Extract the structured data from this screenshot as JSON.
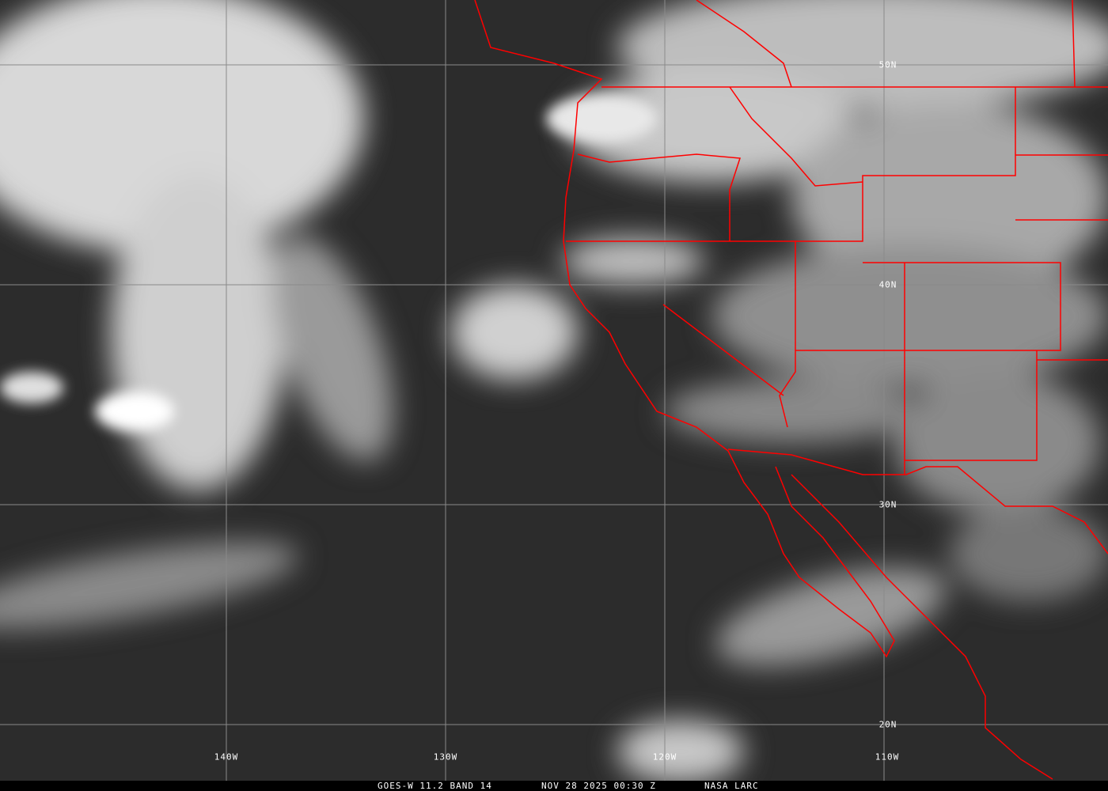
{
  "caption": {
    "satellite": "GOES-W 11.2 BAND 14",
    "datetime": "NOV 28 2025 00:30 Z",
    "source": "NASA LARC"
  },
  "grid": {
    "latitudes": [
      "50N",
      "40N",
      "30N",
      "20N"
    ],
    "longitudes": [
      "140W",
      "130W",
      "120W",
      "110W"
    ]
  },
  "colors": {
    "borders": "#ff0000",
    "grid": "#8a8a8a",
    "ocean_clear": "#2e2e2e",
    "cloud": "#f2f2f2"
  }
}
